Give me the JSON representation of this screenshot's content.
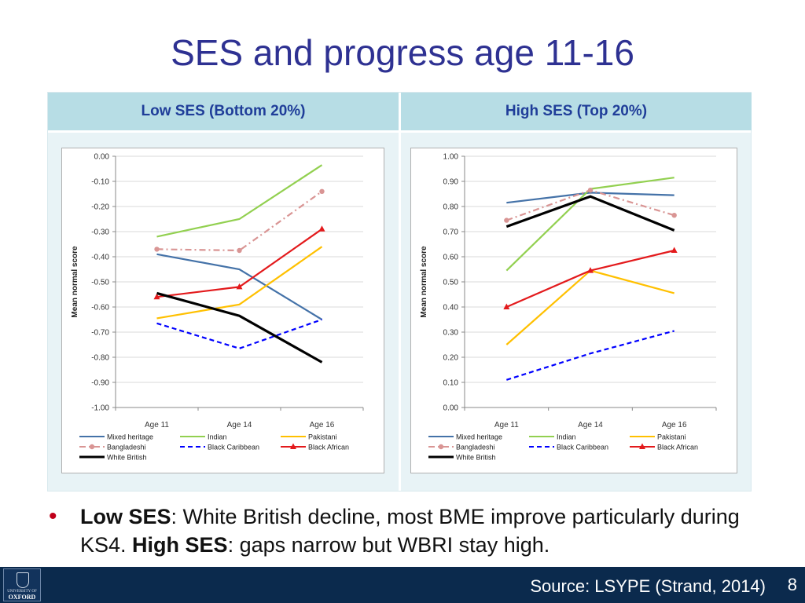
{
  "slide": {
    "title": "SES and progress age 11-16",
    "bullet": {
      "part1_bold": "Low SES",
      "part1_rest": ": White British decline, most BME improve particularly during KS4. ",
      "part2_bold": "High SES",
      "part2_rest": ": gaps narrow but WBRI stay high."
    },
    "footer": {
      "source": "Source:  LSYPE (Strand, 2014)",
      "page_number": "8",
      "logo_line1": "UNIVERSITY OF",
      "logo_line2": "OXFORD"
    },
    "colors": {
      "title": "#2e3192",
      "header_bg": "#b7dde5",
      "header_text": "#1f3d99",
      "footer_bg": "#0b2a4d",
      "bullet": "#c0001a"
    }
  },
  "chart_data": [
    {
      "type": "line",
      "panel_label": "Low SES (Bottom 20%)",
      "categories": [
        "Age 11",
        "Age 14",
        "Age 16"
      ],
      "ylabel": "Mean normal score",
      "ylim": [
        -1.0,
        0.0
      ],
      "yticks": [
        "0.00",
        "-0.10",
        "-0.20",
        "-0.30",
        "-0.40",
        "-0.50",
        "-0.60",
        "-0.70",
        "-0.80",
        "-0.90",
        "-1.00"
      ],
      "grid": true,
      "legend": "bottom",
      "series": [
        {
          "name": "Mixed heritage",
          "values": [
            -0.39,
            -0.45,
            -0.65
          ],
          "color": "#4472a8",
          "dash": "solid",
          "marker": "none"
        },
        {
          "name": "Indian",
          "values": [
            -0.32,
            -0.25,
            -0.035
          ],
          "color": "#92d050",
          "dash": "solid",
          "marker": "none"
        },
        {
          "name": "Pakistani",
          "values": [
            -0.645,
            -0.59,
            -0.36
          ],
          "color": "#ffc000",
          "dash": "solid",
          "marker": "none"
        },
        {
          "name": "Bangladeshi",
          "values": [
            -0.37,
            -0.375,
            -0.14
          ],
          "color": "#d99594",
          "dash": "dashdot",
          "marker": "circle"
        },
        {
          "name": "Black Caribbean",
          "values": [
            -0.665,
            -0.765,
            -0.65
          ],
          "color": "#0000ff",
          "dash": "dash",
          "marker": "none"
        },
        {
          "name": "Black African",
          "values": [
            -0.56,
            -0.52,
            -0.29
          ],
          "color": "#e31a1c",
          "dash": "solid",
          "marker": "triangle"
        },
        {
          "name": "White British",
          "values": [
            -0.545,
            -0.635,
            -0.82
          ],
          "color": "#000000",
          "dash": "solid",
          "marker": "none"
        }
      ]
    },
    {
      "type": "line",
      "panel_label": "High SES (Top 20%)",
      "categories": [
        "Age 11",
        "Age 14",
        "Age 16"
      ],
      "ylabel": "Mean normal score",
      "ylim": [
        0.0,
        1.0
      ],
      "yticks": [
        "1.00",
        "0.90",
        "0.80",
        "0.70",
        "0.60",
        "0.50",
        "0.40",
        "0.30",
        "0.20",
        "0.10",
        "0.00"
      ],
      "grid": true,
      "legend": "bottom",
      "series": [
        {
          "name": "Mixed heritage",
          "values": [
            0.815,
            0.855,
            0.845
          ],
          "color": "#4472a8",
          "dash": "solid",
          "marker": "none"
        },
        {
          "name": "Indian",
          "values": [
            0.545,
            0.87,
            0.915
          ],
          "color": "#92d050",
          "dash": "solid",
          "marker": "none"
        },
        {
          "name": "Pakistani",
          "values": [
            0.25,
            0.545,
            0.455
          ],
          "color": "#ffc000",
          "dash": "solid",
          "marker": "none"
        },
        {
          "name": "Bangladeshi",
          "values": [
            0.745,
            0.865,
            0.765
          ],
          "color": "#d99594",
          "dash": "dashdot",
          "marker": "circle"
        },
        {
          "name": "Black Caribbean",
          "values": [
            0.11,
            0.215,
            0.305
          ],
          "color": "#0000ff",
          "dash": "dash",
          "marker": "none"
        },
        {
          "name": "Black African",
          "values": [
            0.4,
            0.545,
            0.625
          ],
          "color": "#e31a1c",
          "dash": "solid",
          "marker": "triangle"
        },
        {
          "name": "White British",
          "values": [
            0.72,
            0.84,
            0.705
          ],
          "color": "#000000",
          "dash": "solid",
          "marker": "none"
        }
      ]
    }
  ]
}
